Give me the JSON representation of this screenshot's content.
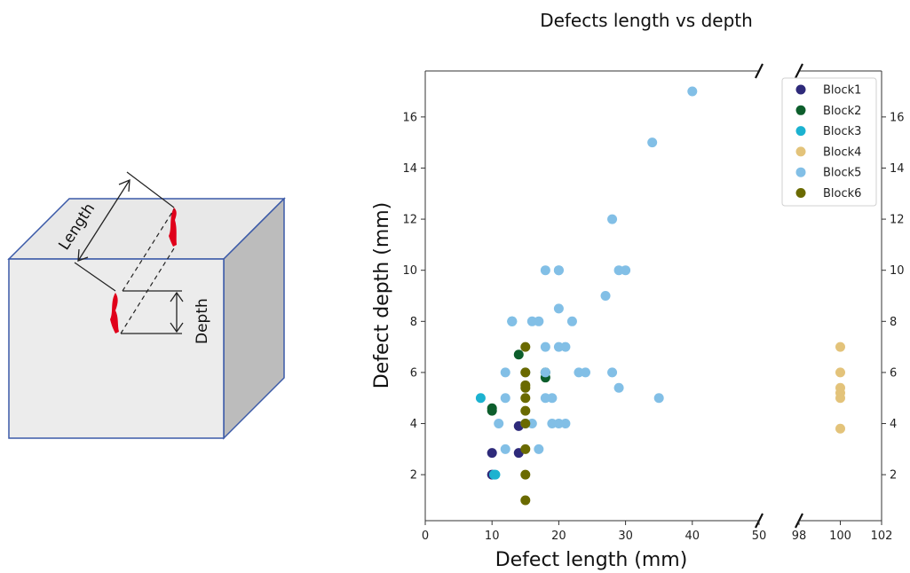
{
  "diagram": {
    "length_label": "Length",
    "depth_label": "Depth",
    "colors": {
      "front": "#ececec",
      "top": "#e8e8e8",
      "side": "#bcbcbc",
      "edge": "#3b5aa8",
      "defect": "#e0001a"
    }
  },
  "chart_data": {
    "type": "scatter",
    "title": "Defects length vs depth",
    "xlabel": "Defect length (mm)",
    "ylabel": "Defect depth (mm)",
    "xlim_left": [
      0,
      50
    ],
    "xlim_right": [
      98,
      102
    ],
    "ylim": [
      0.2,
      17.8
    ],
    "xticks_left": [
      0,
      10,
      20,
      30,
      40,
      50
    ],
    "xticks_right": [
      98,
      100,
      102
    ],
    "yticks": [
      2,
      4,
      6,
      8,
      10,
      12,
      14,
      16
    ],
    "axis_break": true,
    "legend_position": "top-right",
    "series": [
      {
        "name": "Block1",
        "color": "#2e2a7a",
        "x": [
          10,
          14,
          14,
          10
        ],
        "y": [
          2.85,
          2.85,
          3.9,
          2
        ]
      },
      {
        "name": "Block2",
        "color": "#0d5e2c",
        "x": [
          10,
          10,
          14,
          18,
          18
        ],
        "y": [
          4.5,
          4.6,
          6.7,
          5.8,
          6
        ]
      },
      {
        "name": "Block3",
        "color": "#1cb2d0",
        "x": [
          8.3,
          10.3,
          13,
          10.5
        ],
        "y": [
          5,
          2,
          8,
          2
        ]
      },
      {
        "name": "Block4",
        "color": "#e3c37a",
        "x": [
          100,
          100,
          100,
          100,
          100,
          100
        ],
        "y": [
          3.8,
          5,
          5.4,
          6,
          7,
          5.2
        ]
      },
      {
        "name": "Block5",
        "color": "#82bfe6",
        "x": [
          40,
          34,
          28,
          18,
          20,
          20,
          29,
          30,
          27,
          20,
          13,
          16,
          17,
          22,
          18,
          20,
          21,
          12,
          15,
          18,
          23,
          24,
          28,
          29,
          12,
          18,
          19,
          35,
          11,
          16,
          19,
          20,
          21,
          12,
          17,
          15
        ],
        "y": [
          17,
          15,
          12,
          10,
          10,
          8.5,
          10,
          10,
          9,
          10,
          8,
          8,
          8,
          8,
          7,
          7,
          7,
          6,
          6,
          6,
          6,
          6,
          6,
          5.4,
          5,
          5,
          5,
          5,
          4,
          4,
          4,
          4,
          4,
          3,
          3,
          4
        ]
      },
      {
        "name": "Block6",
        "color": "#6a6a00",
        "x": [
          15,
          15,
          15,
          15,
          15,
          15,
          15,
          15,
          15,
          15
        ],
        "y": [
          7,
          6,
          5.5,
          5,
          4.5,
          4,
          3,
          2,
          1,
          5.4
        ]
      }
    ]
  }
}
